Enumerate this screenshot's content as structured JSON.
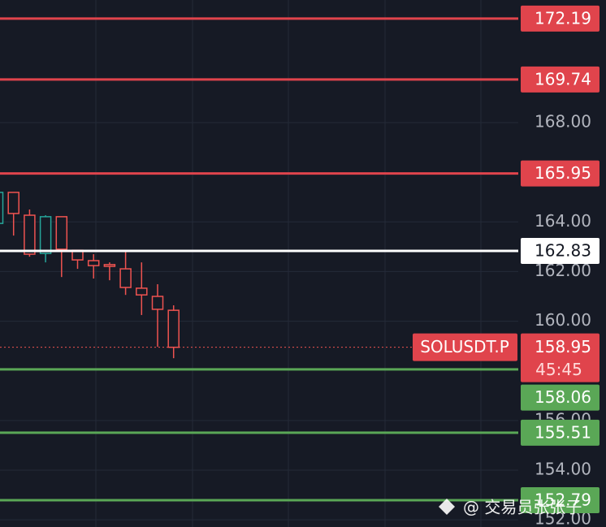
{
  "chart_data": {
    "type": "candlestick",
    "symbol": "SOLUSDT.P",
    "last_price": 158.95,
    "countdown": "45:45",
    "watermark": "@ 交易员张张子",
    "open": [
      163.94,
      165.19,
      164.27,
      162.73,
      164.21,
      162.86,
      162.44,
      162.28,
      162.11,
      161.33,
      161.0,
      160.44
    ],
    "high": [
      165.19,
      165.19,
      164.5,
      164.27,
      164.21,
      162.86,
      162.7,
      162.37,
      162.8,
      162.37,
      161.49,
      160.64
    ],
    "low": [
      163.94,
      163.45,
      162.6,
      162.37,
      161.78,
      162.11,
      161.72,
      161.65,
      161.06,
      160.25,
      158.97,
      158.51
    ],
    "close": [
      165.19,
      164.34,
      162.7,
      164.21,
      162.9,
      162.47,
      162.24,
      162.21,
      161.36,
      161.06,
      160.48,
      158.95
    ],
    "up_color": "#26a69a",
    "down_color": "#ef5350",
    "ylim": [
      151.71,
      172.94
    ],
    "yticks": [
      {
        "value": 152,
        "label": "152.00"
      },
      {
        "value": 154,
        "label": "154.00"
      },
      {
        "value": 156,
        "label": "156.00"
      },
      {
        "value": 160,
        "label": "160.00"
      },
      {
        "value": 162,
        "label": "162.00"
      },
      {
        "value": 164,
        "label": "164.00"
      },
      {
        "value": 168,
        "label": "168.00"
      }
    ],
    "grid": true,
    "levels": [
      {
        "value": 172.19,
        "color": "#e0444c"
      },
      {
        "value": 169.74,
        "color": "#e0444c"
      },
      {
        "value": 165.95,
        "color": "#e0444c"
      },
      {
        "value": 162.83,
        "color": "#ffffff"
      },
      {
        "value": 158.06,
        "color": "#5aa756"
      },
      {
        "value": 155.51,
        "color": "#5aa756"
      },
      {
        "value": 152.79,
        "color": "#5aa756"
      }
    ]
  }
}
